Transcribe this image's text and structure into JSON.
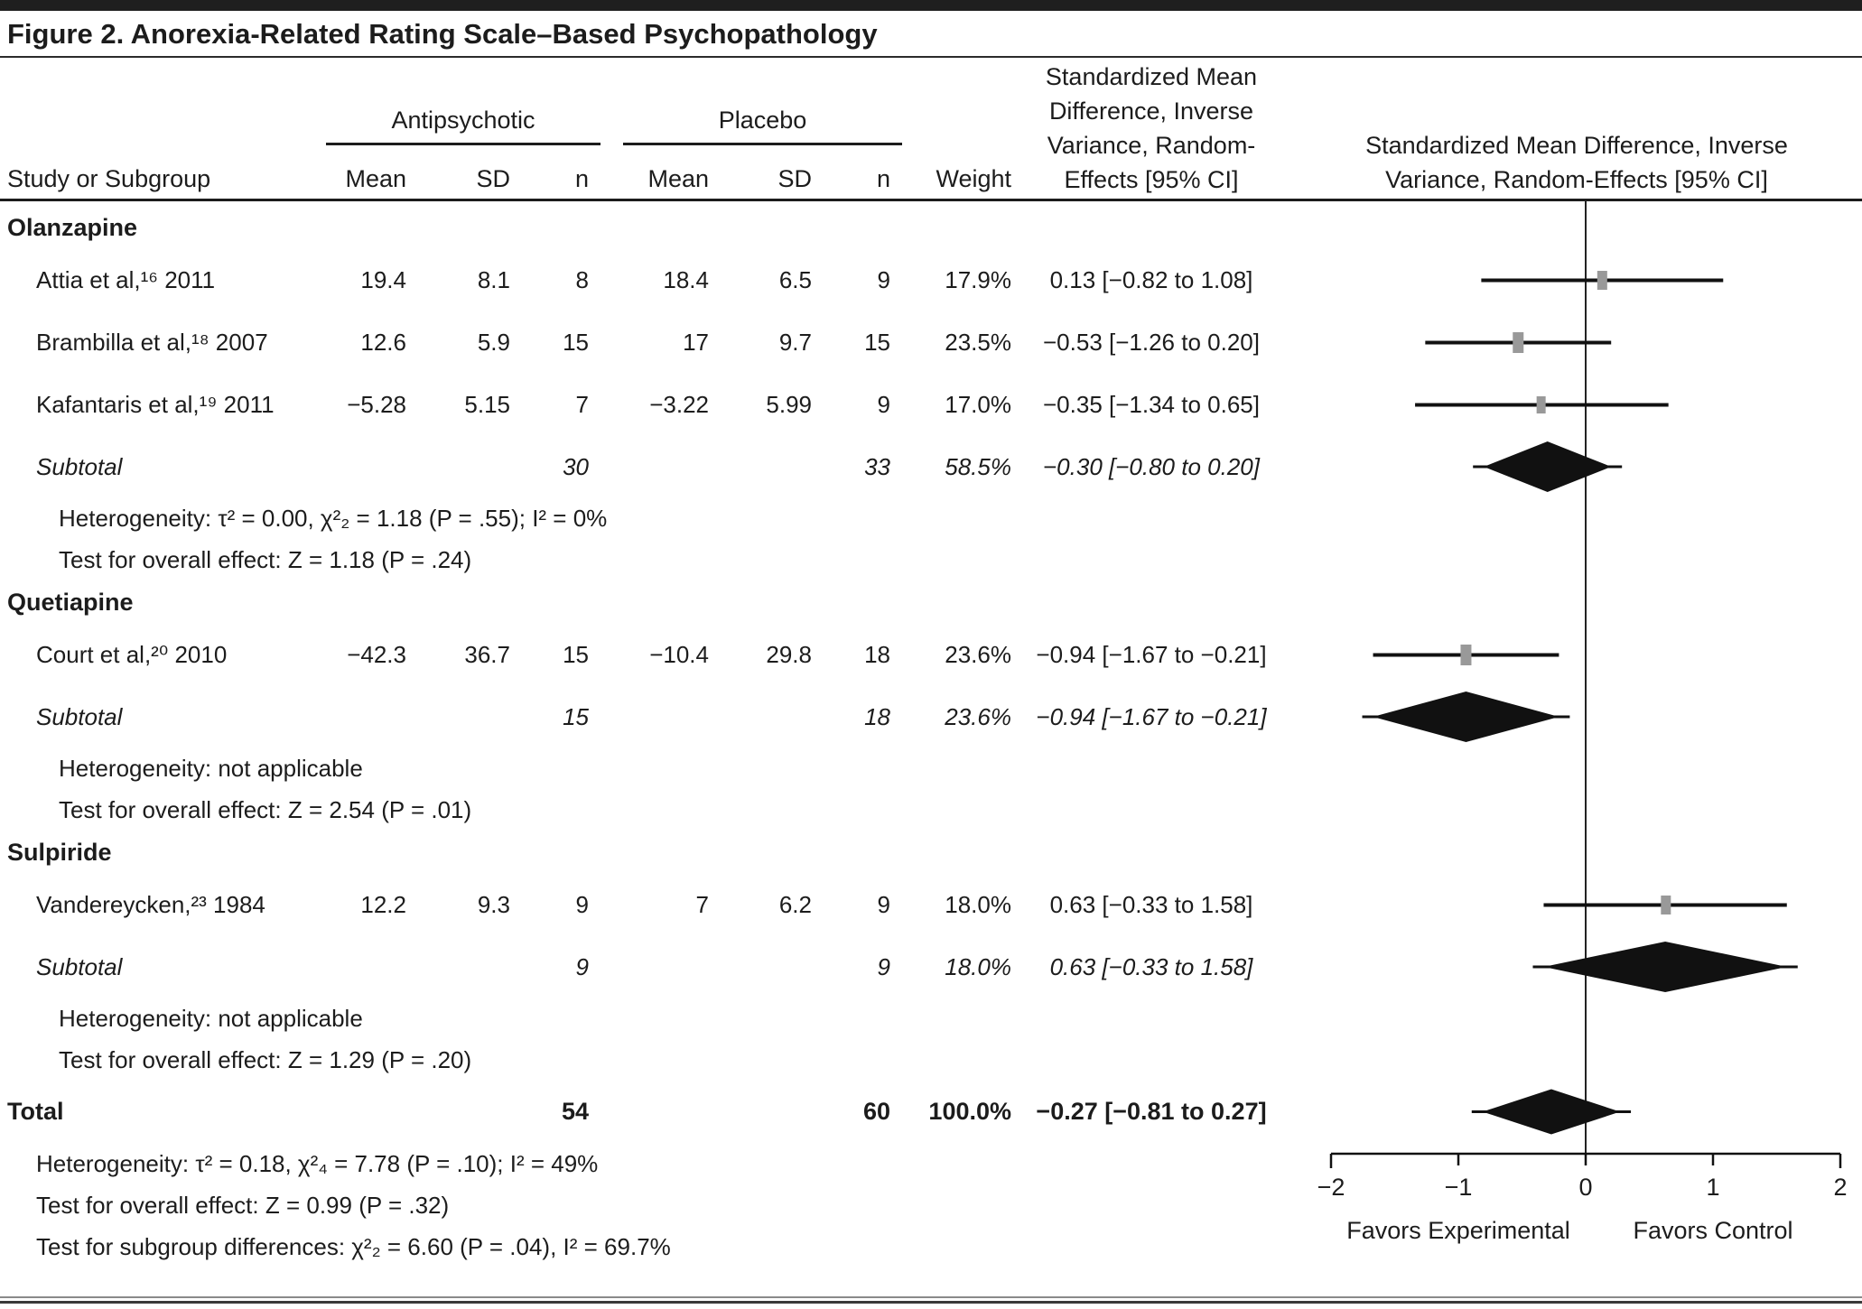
{
  "title": "Figure 2. Anorexia-Related Rating Scale–Based Psychopathology",
  "colors": {
    "ink": "#1c1c1c",
    "marker_gray": "#999999",
    "line_black": "#111111"
  },
  "table": {
    "group_headers": {
      "antipsychotic": "Antipsychotic",
      "placebo": "Placebo"
    },
    "col_headers": {
      "study": "Study or Subgroup",
      "mean_ap": "Mean",
      "sd_ap": "SD",
      "n_ap": "n",
      "mean_pl": "Mean",
      "sd_pl": "SD",
      "n_pl": "n",
      "weight": "Weight",
      "smd_lines": [
        "Standardized Mean",
        "Difference, Inverse",
        "Variance, Random-",
        "Effects [95% CI]"
      ],
      "plot_lines": [
        "Standardized Mean Difference, Inverse",
        "Variance, Random-Effects [95% CI]"
      ]
    }
  },
  "sections": [
    {
      "label": "Olanzapine",
      "studies": [
        {
          "study": "Attia et al,¹⁶ 2011",
          "ap": {
            "mean": "19.4",
            "sd": "8.1",
            "n": "8"
          },
          "pl": {
            "mean": "18.4",
            "sd": "6.5",
            "n": "9"
          },
          "weight": "17.9%",
          "ci_text": "0.13 [−0.82 to 1.08]",
          "est": 0.13,
          "lo": -0.82,
          "hi": 1.08,
          "w": 17.9
        },
        {
          "study": "Brambilla et al,¹⁸ 2007",
          "ap": {
            "mean": "12.6",
            "sd": "5.9",
            "n": "15"
          },
          "pl": {
            "mean": "17",
            "sd": "9.7",
            "n": "15"
          },
          "weight": "23.5%",
          "ci_text": "−0.53 [−1.26 to 0.20]",
          "est": -0.53,
          "lo": -1.26,
          "hi": 0.2,
          "w": 23.5
        },
        {
          "study": "Kafantaris et al,¹⁹ 2011",
          "ap": {
            "mean": "−5.28",
            "sd": "5.15",
            "n": "7"
          },
          "pl": {
            "mean": "−3.22",
            "sd": "5.99",
            "n": "9"
          },
          "weight": "17.0%",
          "ci_text": "−0.35 [−1.34 to 0.65]",
          "est": -0.35,
          "lo": -1.34,
          "hi": 0.65,
          "w": 17.0
        }
      ],
      "subtotal": {
        "label": "Subtotal",
        "ap_n": "30",
        "pl_n": "33",
        "weight": "58.5%",
        "ci_text": "−0.30 [−0.80 to 0.20]",
        "est": -0.3,
        "lo": -0.8,
        "hi": 0.2
      },
      "stats": [
        "Heterogeneity: τ² = 0.00, χ²₂ = 1.18 (P = .55); I² = 0%",
        "Test for overall effect: Z = 1.18 (P = .24)"
      ]
    },
    {
      "label": "Quetiapine",
      "studies": [
        {
          "study": "Court et al,²⁰ 2010",
          "ap": {
            "mean": "−42.3",
            "sd": "36.7",
            "n": "15"
          },
          "pl": {
            "mean": "−10.4",
            "sd": "29.8",
            "n": "18"
          },
          "weight": "23.6%",
          "ci_text": "−0.94 [−1.67 to −0.21]",
          "est": -0.94,
          "lo": -1.67,
          "hi": -0.21,
          "w": 23.6
        }
      ],
      "subtotal": {
        "label": "Subtotal",
        "ap_n": "15",
        "pl_n": "18",
        "weight": "23.6%",
        "ci_text": "−0.94 [−1.67 to −0.21]",
        "est": -0.94,
        "lo": -1.67,
        "hi": -0.21
      },
      "stats": [
        "Heterogeneity: not applicable",
        "Test for overall effect: Z = 2.54 (P = .01)"
      ]
    },
    {
      "label": "Sulpiride",
      "studies": [
        {
          "study": "Vandereycken,²³ 1984",
          "ap": {
            "mean": "12.2",
            "sd": "9.3",
            "n": "9"
          },
          "pl": {
            "mean": "7",
            "sd": "6.2",
            "n": "9"
          },
          "weight": "18.0%",
          "ci_text": "0.63 [−0.33 to 1.58]",
          "est": 0.63,
          "lo": -0.33,
          "hi": 1.58,
          "w": 18.0
        }
      ],
      "subtotal": {
        "label": "Subtotal",
        "ap_n": "9",
        "pl_n": "9",
        "weight": "18.0%",
        "ci_text": "0.63 [−0.33 to 1.58]",
        "est": 0.63,
        "lo": -0.33,
        "hi": 1.58
      },
      "stats": [
        "Heterogeneity: not applicable",
        "Test for overall effect: Z = 1.29 (P = .20)"
      ]
    }
  ],
  "total_row": {
    "label": "Total",
    "ap_n": "54",
    "pl_n": "60",
    "weight": "100.0%",
    "ci_text": "−0.27 [−0.81 to 0.27]",
    "est": -0.27,
    "lo": -0.81,
    "hi": 0.27
  },
  "footer_stats": [
    "Heterogeneity: τ² = 0.18, χ²₄ = 7.78 (P = .10); I² = 49%",
    "Test for overall effect: Z = 0.99 (P = .32)",
    "Test for subgroup differences: χ²₂ = 6.60 (P = .04), I² = 69.7%"
  ],
  "chart_data": {
    "type": "forest",
    "title": "Figure 2. Anorexia-Related Rating Scale–Based Psychopathology",
    "effect_label": "Standardized Mean Difference, Inverse Variance, Random-Effects [95% CI]",
    "x_axis": {
      "range": [
        -2,
        2
      ],
      "ticks": [
        -2,
        -1,
        0,
        1,
        2
      ],
      "zero_line": 0,
      "label_left": "Favors Experimental",
      "label_right": "Favors Control"
    },
    "studies": [
      {
        "name": "Attia et al, 2011",
        "group": "Olanzapine",
        "est": 0.13,
        "lo": -0.82,
        "hi": 1.08,
        "weight_pct": 17.9
      },
      {
        "name": "Brambilla et al, 2007",
        "group": "Olanzapine",
        "est": -0.53,
        "lo": -1.26,
        "hi": 0.2,
        "weight_pct": 23.5
      },
      {
        "name": "Kafantaris et al, 2011",
        "group": "Olanzapine",
        "est": -0.35,
        "lo": -1.34,
        "hi": 0.65,
        "weight_pct": 17.0
      },
      {
        "name": "Court et al, 2010",
        "group": "Quetiapine",
        "est": -0.94,
        "lo": -1.67,
        "hi": -0.21,
        "weight_pct": 23.6
      },
      {
        "name": "Vandereycken, 1984",
        "group": "Sulpiride",
        "est": 0.63,
        "lo": -0.33,
        "hi": 1.58,
        "weight_pct": 18.0
      }
    ],
    "subtotals": [
      {
        "group": "Olanzapine",
        "est": -0.3,
        "lo": -0.8,
        "hi": 0.2,
        "weight_pct": 58.5
      },
      {
        "group": "Quetiapine",
        "est": -0.94,
        "lo": -1.67,
        "hi": -0.21,
        "weight_pct": 23.6
      },
      {
        "group": "Sulpiride",
        "est": 0.63,
        "lo": -0.33,
        "hi": 1.58,
        "weight_pct": 18.0
      }
    ],
    "total": {
      "est": -0.27,
      "lo": -0.81,
      "hi": 0.27,
      "weight_pct": 100.0
    }
  }
}
